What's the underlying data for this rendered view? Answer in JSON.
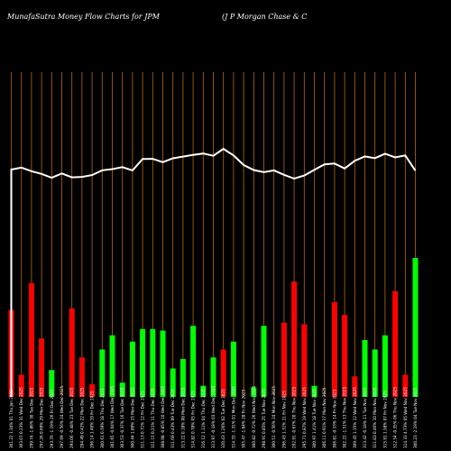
{
  "header": {
    "left": "MunafaSutra  Money Flow  Charts for JPM",
    "right": "(J P Morgan  Chase   & C"
  },
  "chart_data": {
    "type": "bar",
    "title": "MunafaSutra  Money Flow  Charts for JPM",
    "subtitle": "(J P Morgan  Chase   & C",
    "grid": "vertical",
    "categories": [
      "301.22 1.34% 01 Thu Jan 2026",
      "303.07 0.23% 31 Wed Dec 2025",
      "299.74 -1.86% 30 Tue Dec 2025",
      "297.26 0.69% 29 Mon Dec 2025",
      "293.76 -1.19% 26 Fri Dec 2025",
      "297.69 -0.56% 24 Wed Dec 2025",
      "294.06 -0.48% 23 Tue Dec 2025",
      "294.49 0.42% 22 Mon Dec 2025",
      "296.14 1.46% 19 Fri Dec 2025",
      "300.61 0.59% 18 Thu Dec 2025",
      "301.65 -0.04% 17 Wed Dec 2025",
      "303.53 -0.37% 16 Tue Dec 2025",
      "300.44 1.89% 15 Mon Dec 2025",
      "311.13 0.71% 12 Fri Dec 2025",
      "311.15 0.21% 11 Thu Dec 2025",
      "308.08 -0.85% 10 Wed Dec 2025",
      "311.69 0.43% 09 Tue Dec 2025",
      "313.22 0.18% 08 Mon Dec 2025",
      "314.82 0.78% 05 Fri Dec 2025",
      "316.12 1.11% 04 Thu Dec 2025",
      "313.97 -0.18% 03 Wed Dec 2025",
      "320.43 1.26% 02 Tue Dec 2025",
      "314.33 -1.31% 01 Mon Dec 2025",
      "305.47 -1.84% 28 Fri Nov 2025",
      "300.82 -0.72% 26 Wed Nov 2025",
      "298.91 0.85% 25 Tue Nov 2025",
      "300.51 -0.56% 24 Mon Nov 2025",
      "296.43 1.31% 21 Fri Nov 2025",
      "292.91 -0.67% 20 Thu Nov 2025",
      "295.71 0.87% 19 Wed Nov 2025",
      "300.97 1.41% 18 Tue Nov 2025",
      "306.11 0.91% 17 Mon Nov 2025",
      "306.81 -0.33% 14 Fri Nov 2025",
      "302.22 -1.51% 13 Thu Nov 2025",
      "309.45 1.35% 12 Wed Nov 2025",
      "313.42 -0.18% 11 Tue Nov 2025",
      "311.83 0.46% 10 Mon Nov 2025",
      "315.91 1.58% 07 Fri Nov 2025",
      "312.54 -0.35% 06 Thu Nov 2025",
      "314.33 4.73% 05 Wed Nov 2025",
      "300.23 -2.19% 04 Tue Nov 2025"
    ],
    "series": [
      {
        "color": "#ff0000",
        "values": [
          55,
          14,
          72,
          37,
          0,
          0,
          56,
          25,
          8,
          0,
          0,
          0,
          0,
          0,
          0,
          0,
          0,
          0,
          0,
          0,
          0,
          30,
          0,
          0,
          0,
          0,
          0,
          47,
          73,
          46,
          0,
          0,
          60,
          52,
          13,
          0,
          0,
          0,
          67,
          14,
          0
        ]
      },
      {
        "color": "#00ff00",
        "values": [
          0,
          0,
          0,
          0,
          17,
          0,
          0,
          0,
          0,
          30,
          39,
          9,
          35,
          43,
          43,
          42,
          18,
          24,
          45,
          7,
          25,
          0,
          35,
          0,
          6,
          45,
          0,
          0,
          0,
          0,
          7,
          0,
          0,
          0,
          0,
          36,
          30,
          39,
          0,
          0,
          88
        ]
      },
      {
        "color": "#00ff00",
        "values": [
          0,
          0,
          0,
          0,
          0,
          0,
          0,
          0,
          0,
          0,
          0,
          0,
          0,
          0,
          0,
          0,
          0,
          0,
          0,
          0,
          0,
          0,
          0,
          0,
          0,
          0,
          0,
          0,
          0,
          0,
          0,
          0,
          0,
          0,
          0,
          0,
          0,
          0,
          0,
          0,
          0
        ]
      },
      {
        "color": "#ff0000",
        "values": [
          0,
          0,
          0,
          0,
          0,
          0,
          0,
          0,
          0,
          0,
          0,
          0,
          0,
          0,
          0,
          0,
          0,
          0,
          0,
          0,
          0,
          0,
          0,
          0,
          0,
          0,
          0,
          0,
          0,
          0,
          0,
          0,
          0,
          0,
          0,
          0,
          0,
          0,
          0,
          0,
          0
        ]
      }
    ],
    "line": {
      "color": "#ffffff",
      "values": [
        301.22,
        303.07,
        299.74,
        297.26,
        293.76,
        297.69,
        294.06,
        294.49,
        296.14,
        300.61,
        301.65,
        303.53,
        300.44,
        311.13,
        311.15,
        308.08,
        311.69,
        313.22,
        314.82,
        316.12,
        313.97,
        320.43,
        314.33,
        305.47,
        300.82,
        298.91,
        300.51,
        296.43,
        292.91,
        295.71,
        300.97,
        306.11,
        306.81,
        302.22,
        309.45,
        313.42,
        311.83,
        315.91,
        312.54,
        314.33,
        300.23
      ]
    }
  }
}
